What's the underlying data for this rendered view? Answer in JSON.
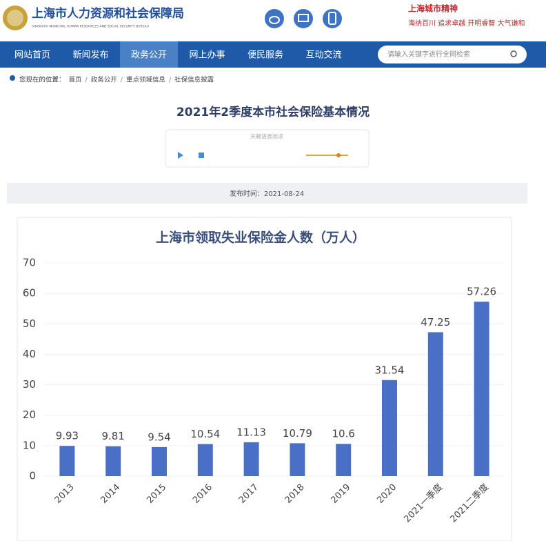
{
  "header": {
    "title": "上海市人力资源和社会保障局",
    "subtitle": "SHANGHAI MUNICIPAL HUMAN RESOURCES AND SOCIAL SECURITY BUREAU",
    "slogan_title": "上海城市精神",
    "slogan": "海纳百川 追求卓越 开明睿智 大气谦和"
  },
  "nav": [
    "网站首页",
    "新闻发布",
    "政务公开",
    "网上办事",
    "便民服务",
    "互动交流"
  ],
  "search_placeholder": "请输入关键字进行全网检索",
  "breadcrumb": {
    "label": "您现在的位置：",
    "separator": "/",
    "items": [
      "首页",
      "政务公开",
      "重点领域信息",
      "社保信息披露"
    ]
  },
  "article": {
    "title": "2021年2季度本市社会保险基本情况",
    "player_label": "天籁语音阅读",
    "date": "发布时间：2021-08-24"
  },
  "chart_data": {
    "type": "bar",
    "title": "上海市领取失业保险金人数（万人）",
    "categories": [
      "2013",
      "2014",
      "2015",
      "2016",
      "2017",
      "2018",
      "2019",
      "2020",
      "2021一季度",
      "2021二季度"
    ],
    "values": [
      9.93,
      9.81,
      9.54,
      10.54,
      11.13,
      10.79,
      10.6,
      31.54,
      47.25,
      57.26
    ],
    "color": "#4a6fc7",
    "ylim": [
      0,
      70
    ],
    "yticks": [
      0,
      10,
      20,
      30,
      40,
      50,
      60,
      70
    ],
    "grid": true
  }
}
